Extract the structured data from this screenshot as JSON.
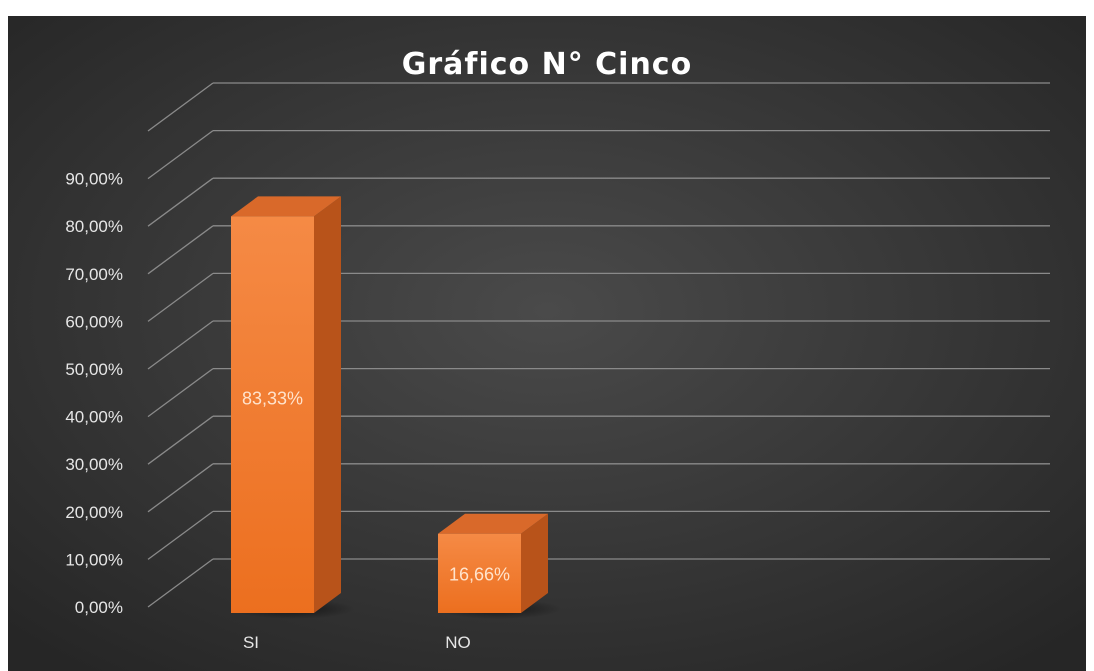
{
  "chart_data": {
    "type": "bar",
    "title": "Gráfico N° Cinco",
    "categories": [
      "SI",
      "NO"
    ],
    "values": [
      83.33,
      16.66
    ],
    "value_labels": [
      "83,33%",
      "16,66%"
    ],
    "ylim": [
      0,
      90
    ],
    "ytick_values": [
      0,
      10,
      20,
      30,
      40,
      50,
      60,
      70,
      80,
      90
    ],
    "ytick_labels": [
      "0,00%",
      "10,00%",
      "20,00%",
      "30,00%",
      "40,00%",
      "50,00%",
      "60,00%",
      "70,00%",
      "80,00%",
      "90,00%"
    ],
    "grid": true,
    "style": "3d-column",
    "colors": {
      "bar_front": "#f07b2c",
      "bar_side": "#b8531a",
      "bar_top": "#d9692a",
      "background": "#3a3a3a",
      "grid": "#8a8a8a"
    }
  }
}
